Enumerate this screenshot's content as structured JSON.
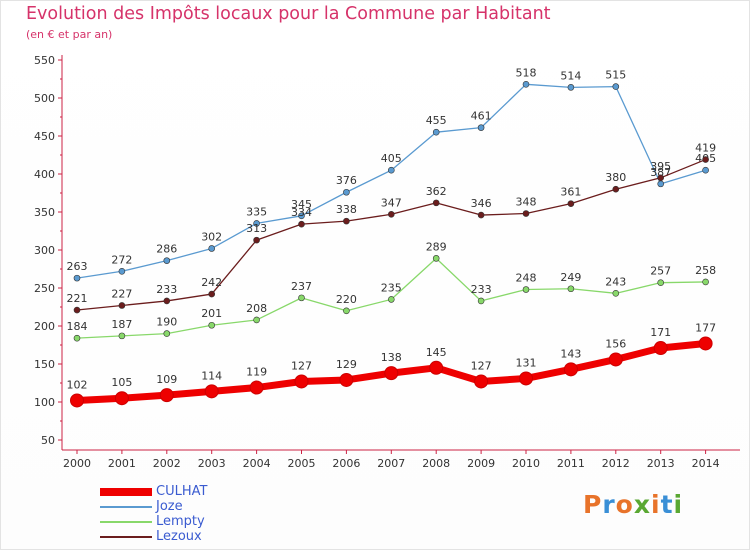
{
  "header": {
    "title": "Evolution des Impôts locaux pour la Commune par Habitant",
    "subtitle": "(en € et par an)"
  },
  "logo": {
    "text": "Proxiti",
    "colors": [
      "#e8732a",
      "#3a8fd6",
      "#e8732a",
      "#5aa832",
      "#e8732a",
      "#3a8fd6",
      "#5aa832"
    ]
  },
  "chart_data": {
    "type": "line",
    "title": "Evolution des Impôts locaux pour la Commune par Habitant",
    "subtitle": "(en € et par an)",
    "x": [
      "2000",
      "2001",
      "2002",
      "2003",
      "2004",
      "2005",
      "2006",
      "2007",
      "2008",
      "2009",
      "2010",
      "2011",
      "2012",
      "2013",
      "2014"
    ],
    "ylim": [
      50,
      550
    ],
    "yticks": [
      50,
      100,
      150,
      200,
      250,
      300,
      350,
      400,
      450,
      500,
      550
    ],
    "grid": false,
    "legend_position": "bottom-left",
    "series": [
      {
        "name": "CULHAT",
        "color": "#ee0000",
        "values": [
          102,
          105,
          109,
          114,
          119,
          127,
          129,
          138,
          145,
          127,
          131,
          143,
          156,
          171,
          177
        ]
      },
      {
        "name": "Joze",
        "color": "#5a9ad0",
        "values": [
          263,
          272,
          286,
          302,
          335,
          345,
          376,
          405,
          455,
          461,
          518,
          514,
          515,
          387,
          405
        ]
      },
      {
        "name": "Lempty",
        "color": "#88d86a",
        "values": [
          184,
          187,
          190,
          201,
          208,
          237,
          220,
          235,
          289,
          233,
          248,
          249,
          243,
          257,
          258
        ]
      },
      {
        "name": "Lezoux",
        "color": "#6b1d1d",
        "values": [
          221,
          227,
          233,
          242,
          313,
          334,
          338,
          347,
          362,
          346,
          348,
          361,
          380,
          395,
          419
        ]
      }
    ]
  }
}
